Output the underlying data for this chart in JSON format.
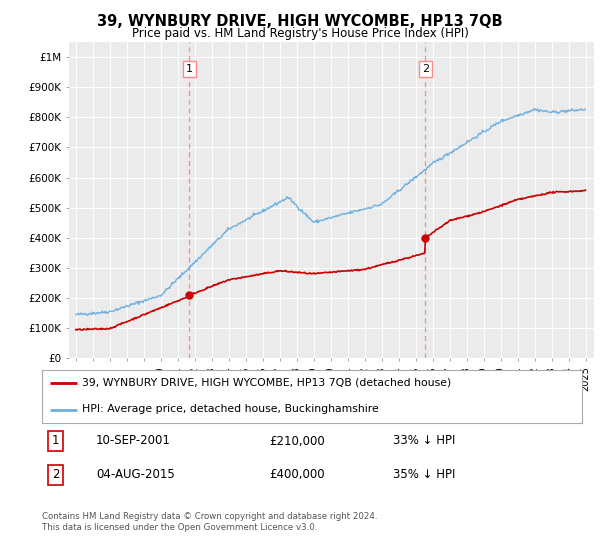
{
  "title": "39, WYNBURY DRIVE, HIGH WYCOMBE, HP13 7QB",
  "subtitle": "Price paid vs. HM Land Registry's House Price Index (HPI)",
  "ylabel_ticks": [
    "£0",
    "£100K",
    "£200K",
    "£300K",
    "£400K",
    "£500K",
    "£600K",
    "£700K",
    "£800K",
    "£900K",
    "£1M"
  ],
  "ytick_vals": [
    0,
    100000,
    200000,
    300000,
    400000,
    500000,
    600000,
    700000,
    800000,
    900000,
    1000000
  ],
  "ylim": [
    0,
    1050000
  ],
  "xlim_start": 1994.6,
  "xlim_end": 2025.5,
  "hpi_color": "#6EB0E0",
  "price_color": "#CC0000",
  "dashed_color": "#FF8888",
  "marker1_x": 2001.69,
  "marker1_y": 210000,
  "marker2_x": 2015.58,
  "marker2_y": 400000,
  "legend_line1": "39, WYNBURY DRIVE, HIGH WYCOMBE, HP13 7QB (detached house)",
  "legend_line2": "HPI: Average price, detached house, Buckinghamshire",
  "table_row1": [
    "1",
    "10-SEP-2001",
    "£210,000",
    "33% ↓ HPI"
  ],
  "table_row2": [
    "2",
    "04-AUG-2015",
    "£400,000",
    "35% ↓ HPI"
  ],
  "footnote": "Contains HM Land Registry data © Crown copyright and database right 2024.\nThis data is licensed under the Open Government Licence v3.0.",
  "background_color": "#ffffff",
  "plot_bg_color": "#ebebeb"
}
